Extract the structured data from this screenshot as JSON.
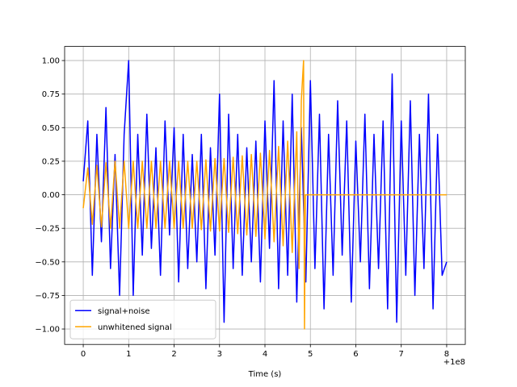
{
  "chart_data": {
    "type": "line",
    "xlabel": "Time (s)",
    "x_offset_label": "+1e8",
    "xlim": [
      -0.41,
      8.41
    ],
    "xticks": [
      0,
      1,
      2,
      3,
      4,
      5,
      6,
      7,
      8
    ],
    "ylim": [
      -1.115,
      1.105
    ],
    "yticks": [
      {
        "value": -1,
        "label": "−1.00"
      },
      {
        "value": -0.75,
        "label": "−0.75"
      },
      {
        "value": -0.5,
        "label": "−0.50"
      },
      {
        "value": -0.25,
        "label": "−0.25"
      },
      {
        "value": 0,
        "label": "0.00"
      },
      {
        "value": 0.25,
        "label": "0.25"
      },
      {
        "value": 0.5,
        "label": "0.50"
      },
      {
        "value": 0.75,
        "label": "0.75"
      },
      {
        "value": 1,
        "label": "1.00"
      }
    ],
    "grid": true,
    "legend": "lower left",
    "series": [
      {
        "name": "signal+noise",
        "color": "#0000ff",
        "x": [
          0,
          0.1,
          0.2,
          0.3,
          0.4,
          0.5,
          0.6,
          0.7,
          0.8,
          0.9,
          1,
          1.1,
          1.2,
          1.3,
          1.4,
          1.5,
          1.6,
          1.7,
          1.8,
          1.9,
          2,
          2.1,
          2.2,
          2.3,
          2.4,
          2.5,
          2.6,
          2.7,
          2.8,
          2.9,
          3,
          3.1,
          3.2,
          3.3,
          3.4,
          3.5,
          3.6,
          3.7,
          3.8,
          3.9,
          4,
          4.1,
          4.2,
          4.3,
          4.4,
          4.5,
          4.6,
          4.7,
          4.8,
          4.9,
          5,
          5.1,
          5.2,
          5.3,
          5.4,
          5.5,
          5.6,
          5.7,
          5.8,
          5.9,
          6,
          6.1,
          6.2,
          6.3,
          6.4,
          6.5,
          6.6,
          6.7,
          6.8,
          6.9,
          7,
          7.1,
          7.2,
          7.3,
          7.4,
          7.5,
          7.6,
          7.7,
          7.8,
          7.9,
          8
        ],
        "values": [
          0.1,
          0.55,
          -0.6,
          0.45,
          -0.35,
          0.65,
          -0.55,
          0.3,
          -0.75,
          0.45,
          1.0,
          -0.75,
          0.45,
          -0.45,
          0.6,
          -0.4,
          0.35,
          -0.6,
          0.55,
          -0.3,
          0.5,
          -0.65,
          0.45,
          -0.55,
          0.3,
          -0.5,
          0.45,
          -0.7,
          0.35,
          -0.45,
          0.75,
          -0.95,
          0.6,
          -0.55,
          0.45,
          -0.6,
          0.35,
          -0.5,
          0.4,
          -0.65,
          0.55,
          -0.4,
          0.85,
          -0.7,
          0.55,
          -0.6,
          0.75,
          -0.8,
          0.5,
          -0.65,
          0.85,
          -0.55,
          0.6,
          -0.85,
          0.45,
          -0.6,
          0.7,
          -0.45,
          0.55,
          -0.8,
          0.4,
          -0.5,
          0.6,
          -0.7,
          0.45,
          -0.55,
          0.55,
          -0.85,
          0.9,
          -0.95,
          0.55,
          -0.6,
          0.7,
          -0.75,
          0.45,
          -0.55,
          0.75,
          -0.85,
          0.45,
          -0.6,
          -0.5
        ]
      },
      {
        "name": "unwhitened signal",
        "color": "#ffa500",
        "x": [
          0,
          0.1,
          0.2,
          0.3,
          0.4,
          0.5,
          0.6,
          0.7,
          0.8,
          0.9,
          1,
          1.1,
          1.2,
          1.3,
          1.4,
          1.5,
          1.6,
          1.7,
          1.8,
          1.9,
          2,
          2.1,
          2.2,
          2.3,
          2.4,
          2.5,
          2.6,
          2.7,
          2.8,
          2.9,
          3,
          3.1,
          3.2,
          3.3,
          3.4,
          3.5,
          3.6,
          3.7,
          3.8,
          3.9,
          4,
          4.1,
          4.2,
          4.3,
          4.4,
          4.5,
          4.6,
          4.7,
          4.75,
          4.8,
          4.85,
          4.87,
          4.89,
          8
        ],
        "values": [
          -0.1,
          0.2,
          -0.22,
          0.22,
          -0.24,
          0.24,
          -0.25,
          0.25,
          -0.25,
          0.25,
          -0.25,
          0.25,
          -0.25,
          0.25,
          -0.25,
          0.25,
          -0.25,
          0.25,
          -0.25,
          0.25,
          -0.25,
          0.25,
          -0.25,
          0.25,
          -0.25,
          0.25,
          -0.26,
          0.26,
          -0.27,
          0.27,
          -0.27,
          0.27,
          -0.28,
          0.28,
          -0.29,
          0.29,
          -0.3,
          0.3,
          -0.31,
          0.31,
          -0.33,
          0.33,
          -0.35,
          0.36,
          -0.38,
          0.4,
          -0.43,
          0.47,
          -0.55,
          0.7,
          1.0,
          -1.0,
          0,
          0
        ]
      }
    ]
  }
}
